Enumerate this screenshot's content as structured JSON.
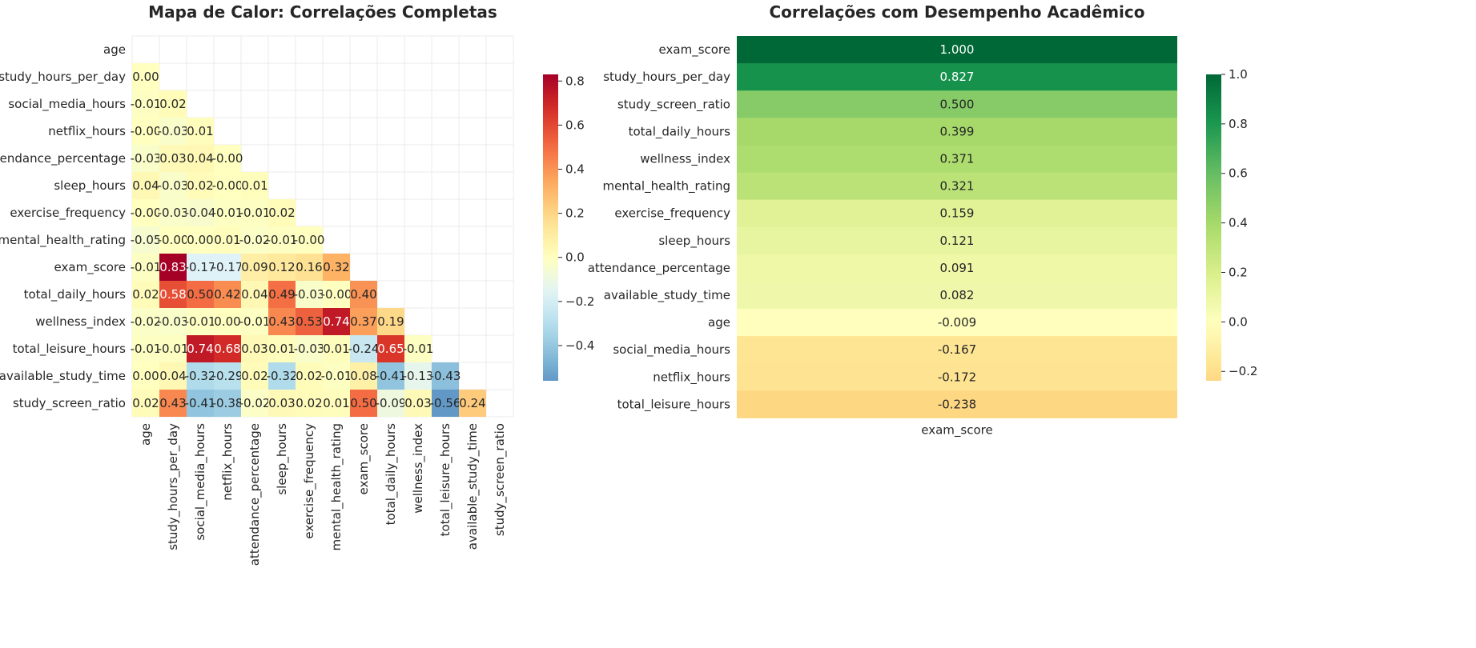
{
  "chart_data": [
    {
      "type": "heatmap",
      "title": "Mapa de Calor: Correlações Completas",
      "variables": [
        "age",
        "study_hours_per_day",
        "social_media_hours",
        "netflix_hours",
        "attendance_percentage",
        "sleep_hours",
        "exercise_frequency",
        "mental_health_rating",
        "exam_score",
        "total_daily_hours",
        "wellness_index",
        "total_leisure_hours",
        "available_study_time",
        "study_screen_ratio"
      ],
      "mask": "upper triangle incl. diagonal",
      "lower_triangle_values": [
        [],
        [
          "0.00"
        ],
        [
          "-0.01",
          "0.02"
        ],
        [
          "-0.00",
          "-0.03",
          "0.01"
        ],
        [
          "-0.03",
          "0.03",
          "0.04",
          "-0.00"
        ],
        [
          "0.04",
          "-0.03",
          "0.02",
          "-0.00",
          "0.01"
        ],
        [
          "-0.00",
          "-0.03",
          "-0.04",
          "-0.01",
          "-0.01",
          "0.02"
        ],
        [
          "-0.05",
          "-0.00",
          "0.00",
          "0.01",
          "-0.02",
          "-0.01",
          "-0.00"
        ],
        [
          "-0.01",
          "0.83",
          "-0.17",
          "-0.17",
          "0.09",
          "0.12",
          "0.16",
          "0.32"
        ],
        [
          "0.02",
          "0.58",
          "0.50",
          "0.42",
          "0.04",
          "0.49",
          "-0.03",
          "-0.00",
          "0.40"
        ],
        [
          "-0.02",
          "-0.03",
          "-0.01",
          "0.00",
          "-0.01",
          "0.43",
          "0.53",
          "0.74",
          "0.37",
          "0.19"
        ],
        [
          "-0.01",
          "-0.01",
          "0.74",
          "0.68",
          "0.03",
          "0.01",
          "-0.03",
          "0.01",
          "-0.24",
          "0.65",
          "-0.01"
        ],
        [
          "0.00",
          "0.04",
          "-0.32",
          "-0.29",
          "0.02",
          "-0.32",
          "0.02",
          "-0.01",
          "0.08",
          "-0.41",
          "-0.13",
          "-0.43"
        ],
        [
          "0.02",
          "0.43",
          "-0.41",
          "-0.38",
          "-0.02",
          "0.03",
          "0.02",
          "0.01",
          "0.50",
          "-0.09",
          "0.03",
          "-0.56",
          "0.24"
        ]
      ],
      "colormap": "RdYlBu_r",
      "vmin": -0.56,
      "vmax": 0.83,
      "colorbar_ticks": [
        "0.8",
        "0.6",
        "0.4",
        "0.2",
        "0.0",
        "−0.2",
        "−0.4"
      ],
      "grid": true
    },
    {
      "type": "heatmap",
      "title": "Correlações com Desempenho Acadêmico",
      "xlabel": "exam_score",
      "rows": [
        "exam_score",
        "study_hours_per_day",
        "study_screen_ratio",
        "total_daily_hours",
        "wellness_index",
        "mental_health_rating",
        "exercise_frequency",
        "sleep_hours",
        "attendance_percentage",
        "available_study_time",
        "age",
        "social_media_hours",
        "netflix_hours",
        "total_leisure_hours"
      ],
      "values": [
        "1.000",
        "0.827",
        "0.500",
        "0.399",
        "0.371",
        "0.321",
        "0.159",
        "0.121",
        "0.091",
        "0.082",
        "-0.009",
        "-0.167",
        "-0.172",
        "-0.238"
      ],
      "colormap": "RdYlGn",
      "vmin": -0.238,
      "vmax": 1.0,
      "colorbar_ticks": [
        "1.0",
        "0.8",
        "0.6",
        "0.4",
        "0.2",
        "0.0",
        "−0.2"
      ]
    }
  ]
}
